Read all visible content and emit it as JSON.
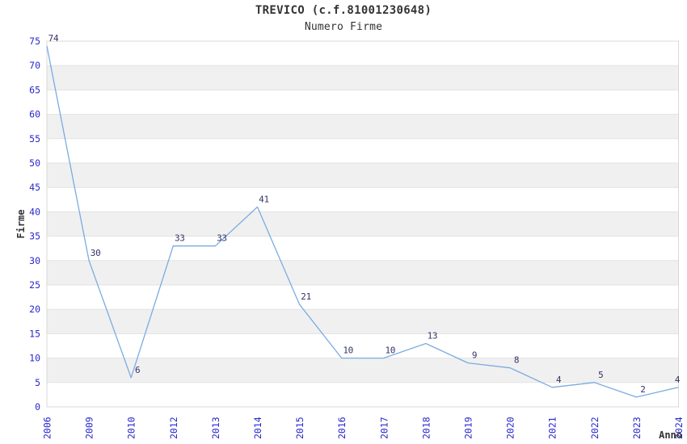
{
  "chart_data": {
    "type": "line",
    "title": "TREVICO (c.f.81001230648)",
    "subtitle": "Numero Firme",
    "xlabel": "Anno",
    "ylabel": "Firme",
    "categories": [
      "2006",
      "2009",
      "2010",
      "2012",
      "2013",
      "2014",
      "2015",
      "2016",
      "2017",
      "2018",
      "2019",
      "2020",
      "2021",
      "2022",
      "2023",
      "2024"
    ],
    "values": [
      74,
      30,
      6,
      33,
      33,
      41,
      21,
      10,
      10,
      13,
      9,
      8,
      4,
      5,
      2,
      4
    ],
    "ylim": [
      0,
      75
    ],
    "ytick_step": 5,
    "grid": true,
    "legend": "none",
    "point_labels": true,
    "band_pattern": "alternating-horizontal"
  },
  "colors": {
    "line": "#7aabe2",
    "tick_label": "#2828cc",
    "point_label": "#333366",
    "title_text": "#333333",
    "band": "#f0f0f0",
    "gridline": "#e2e2e2",
    "plot_border": "#d9d9d9",
    "background": "#ffffff"
  }
}
